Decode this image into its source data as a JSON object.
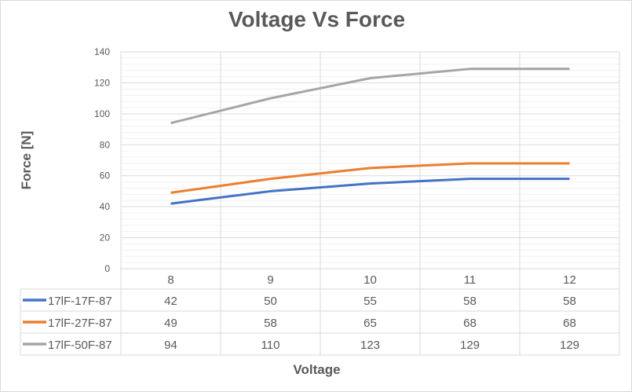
{
  "chart_data": {
    "type": "line",
    "title": "Voltage Vs Force",
    "xlabel": "Voltage",
    "ylabel": "Force [N]",
    "categories": [
      "8",
      "9",
      "10",
      "11",
      "12"
    ],
    "ylim": [
      0,
      140
    ],
    "yticks": [
      0,
      20,
      40,
      60,
      80,
      100,
      120,
      140
    ],
    "grid": true,
    "legend": "data-table",
    "series": [
      {
        "name": "17lF-17F-87",
        "values": [
          42,
          50,
          55,
          58,
          58
        ],
        "color": "#4472c4"
      },
      {
        "name": "17lF-27F-87",
        "values": [
          49,
          58,
          65,
          68,
          68
        ],
        "color": "#ed7d31"
      },
      {
        "name": "17lF-50F-87",
        "values": [
          94,
          110,
          123,
          129,
          129
        ],
        "color": "#a5a5a5"
      }
    ]
  }
}
